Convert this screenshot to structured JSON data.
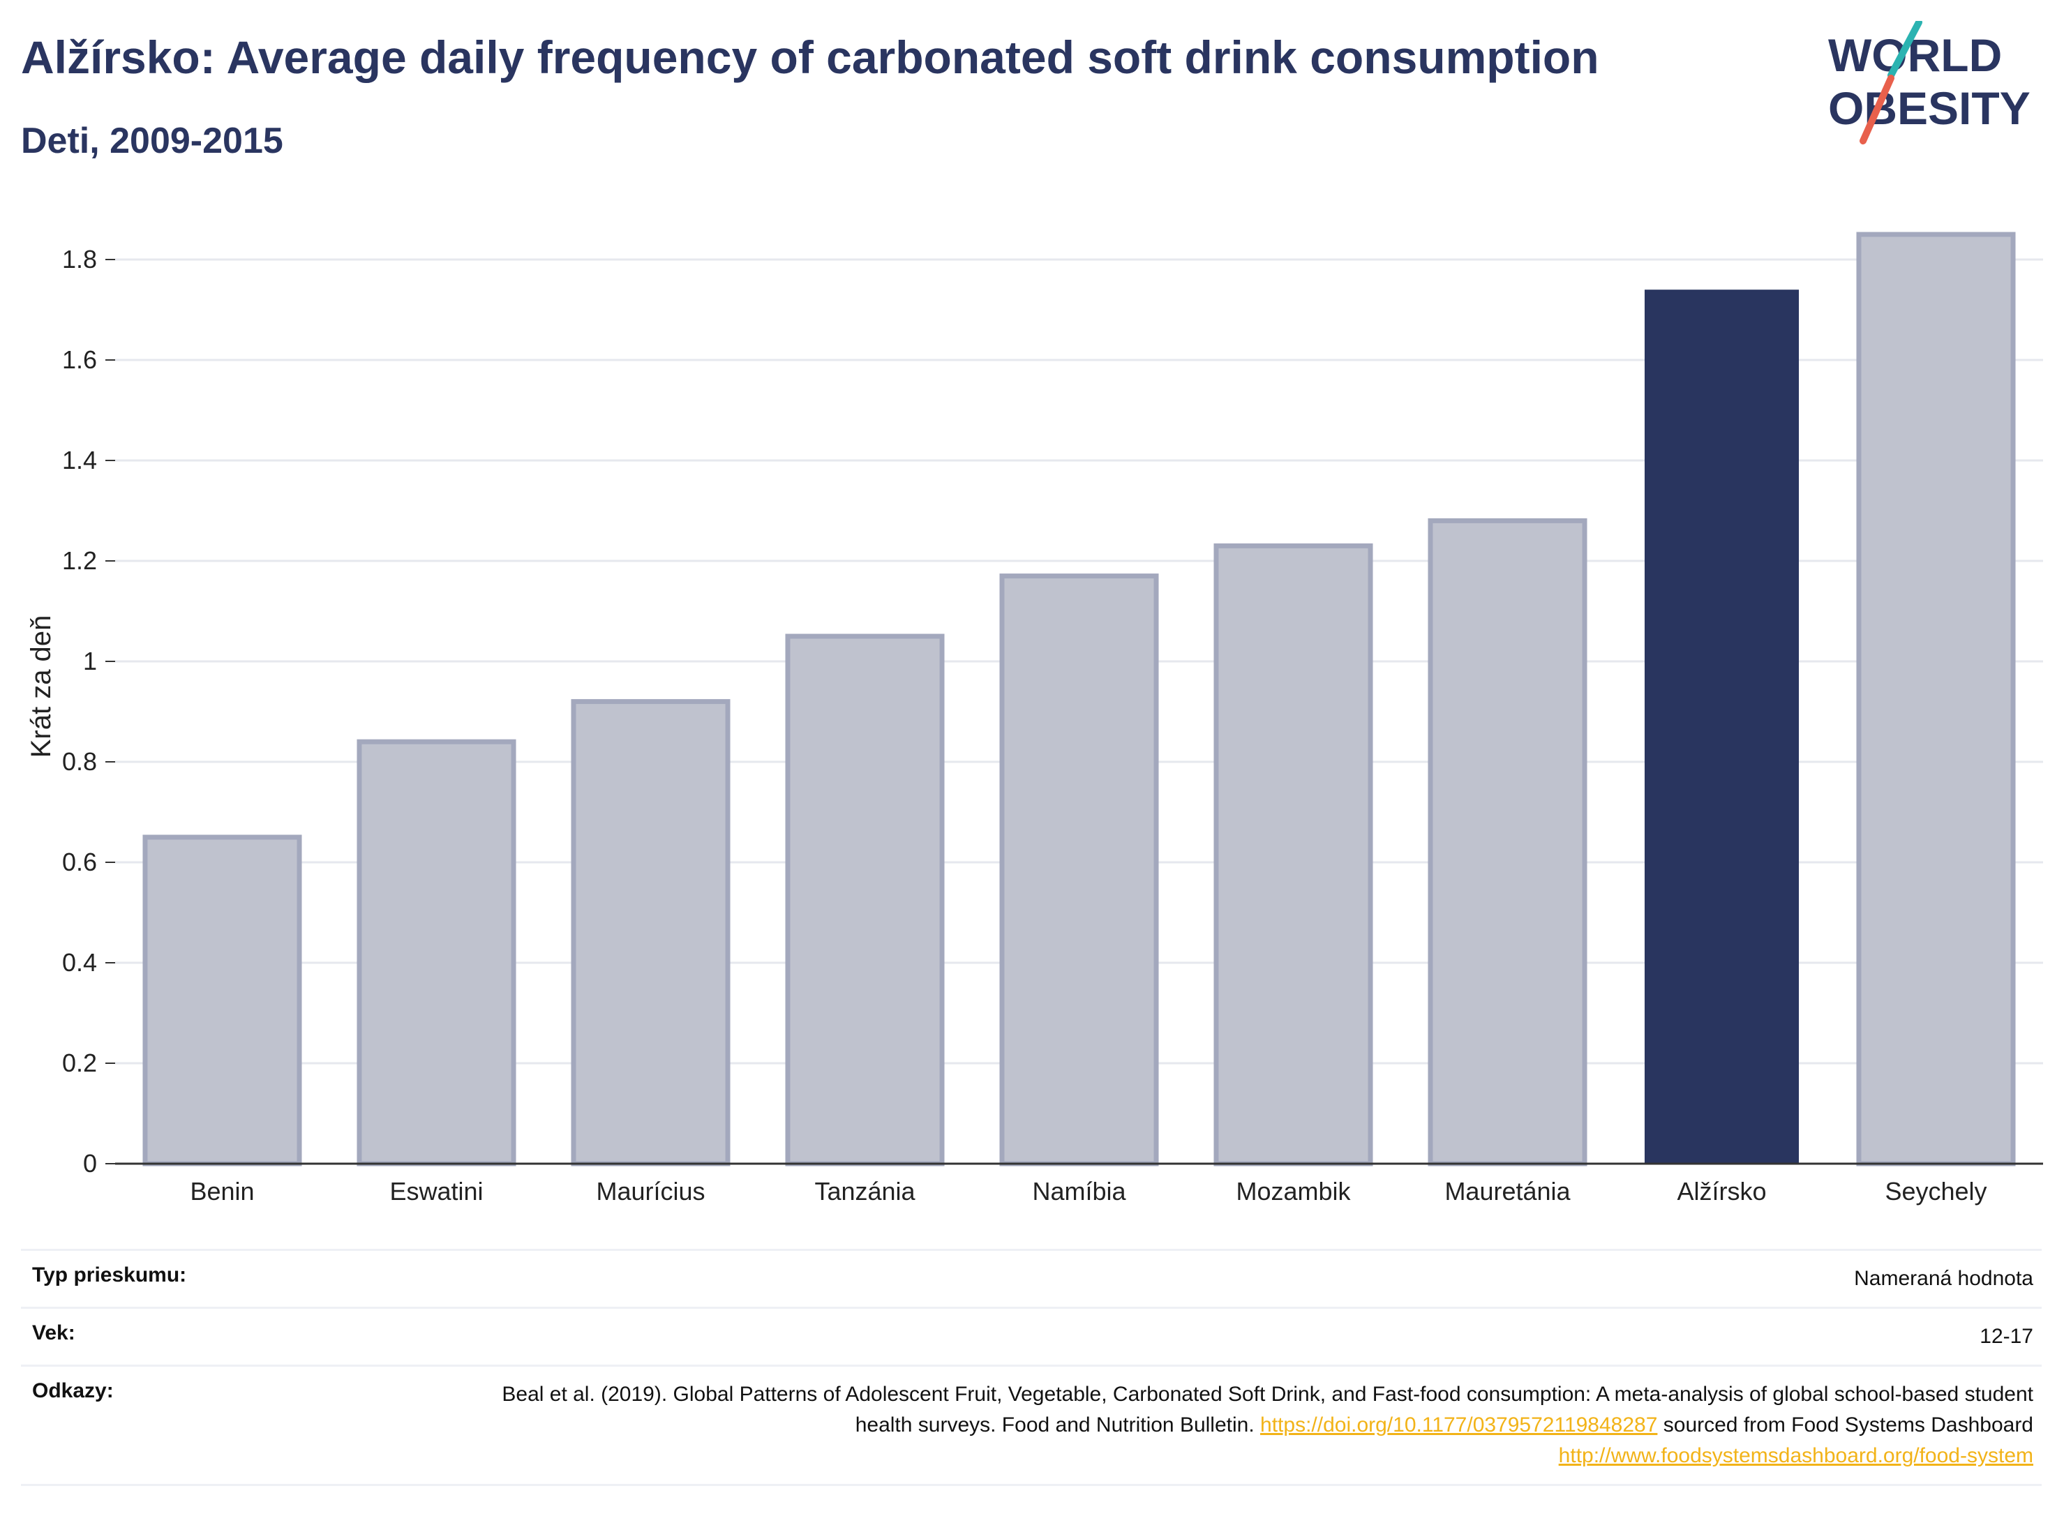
{
  "header": {
    "title": "Alžírsko: Average daily frequency of carbonated soft drink consumption",
    "subtitle": "Deti, 2009-2015"
  },
  "logo": {
    "line1": "WORLD",
    "line2": "OBESITY",
    "accent_colors": [
      "#2bb3b1",
      "#e8604c"
    ]
  },
  "chart_data": {
    "type": "bar",
    "title": "Alžírsko: Average daily frequency of carbonated soft drink consumption",
    "subtitle": "Deti, 2009-2015",
    "ylabel": "Krát za deň",
    "xlabel": "",
    "categories": [
      "Benin",
      "Eswatini",
      "Maurícius",
      "Tanzánia",
      "Namíbia",
      "Mozambik",
      "Mauretánia",
      "Alžírsko",
      "Seychely"
    ],
    "values": [
      0.65,
      0.84,
      0.92,
      1.05,
      1.17,
      1.23,
      1.28,
      1.74,
      1.85
    ],
    "highlight": "Alžírsko",
    "ylim": [
      0,
      1.9
    ],
    "yticks": [
      0,
      0.2,
      0.4,
      0.6,
      0.8,
      1,
      1.2,
      1.4,
      1.6,
      1.8
    ],
    "ytick_labels": [
      "0",
      "0.2",
      "0.4",
      "0.6",
      "0.8",
      "1",
      "1.2",
      "1.4",
      "1.6",
      "1.8"
    ],
    "grid": true,
    "colors": {
      "highlight_fill": "#29355f",
      "muted_fill": "#bfc2ce",
      "muted_stroke": "#a3a8bd"
    }
  },
  "info": {
    "survey_label": "Typ prieskumu:",
    "survey_value": "Nameraná hodnota",
    "age_label": "Vek:",
    "age_value": "12-17",
    "refs_label": "Odkazy:",
    "refs_text_1": "Beal et al. (2019). Global Patterns of Adolescent Fruit, Vegetable, Carbonated Soft Drink, and Fast-food consumption: A meta-analysis of global school-based student health surveys. Food and Nutrition Bulletin.",
    "refs_link_1": "https://doi.org/10.1177/0379572119848287",
    "refs_text_2": "sourced from Food Systems Dashboard",
    "refs_link_2": "http://www.foodsystemsdashboard.org/food-system"
  }
}
